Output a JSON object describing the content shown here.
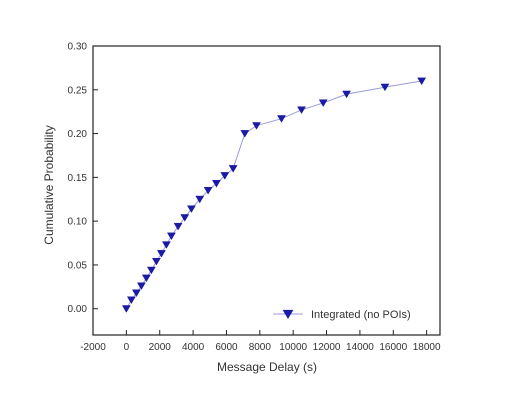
{
  "chart_data": {
    "type": "line",
    "title": "",
    "xlabel": "Message Delay (s)",
    "ylabel": "Cumulative Probability",
    "xlim": [
      -2000,
      18800
    ],
    "ylim": [
      -0.03,
      0.3
    ],
    "x_ticks": [
      -2000,
      0,
      2000,
      4000,
      6000,
      8000,
      10000,
      12000,
      14000,
      16000,
      18000
    ],
    "x_tick_labels": [
      "-2000",
      "0",
      "2000",
      "4000",
      "6000",
      "8000",
      "10000",
      "12000",
      "14000",
      "16000",
      "18000"
    ],
    "y_ticks": [
      0.0,
      0.05,
      0.1,
      0.15,
      0.2,
      0.25,
      0.3
    ],
    "y_tick_labels": [
      "0.00",
      "0.05",
      "0.10",
      "0.15",
      "0.20",
      "0.25",
      "0.30"
    ],
    "grid": false,
    "legend_position": "bottom-right",
    "series": [
      {
        "name": "Integrated (no POIs)",
        "color": "#1a1aa6",
        "line_color": "#9999dd",
        "marker": "triangle-down",
        "x": [
          0,
          300,
          600,
          900,
          1200,
          1500,
          1800,
          2100,
          2400,
          2700,
          3100,
          3500,
          3900,
          4400,
          4900,
          5400,
          5900,
          6400,
          7100,
          7800,
          9300,
          10500,
          11800,
          13200,
          15500,
          17700
        ],
        "y": [
          0.0,
          0.01,
          0.018,
          0.026,
          0.035,
          0.044,
          0.054,
          0.063,
          0.073,
          0.083,
          0.094,
          0.104,
          0.114,
          0.125,
          0.135,
          0.143,
          0.152,
          0.16,
          0.2,
          0.209,
          0.217,
          0.227,
          0.235,
          0.245,
          0.253,
          0.26
        ]
      }
    ]
  }
}
